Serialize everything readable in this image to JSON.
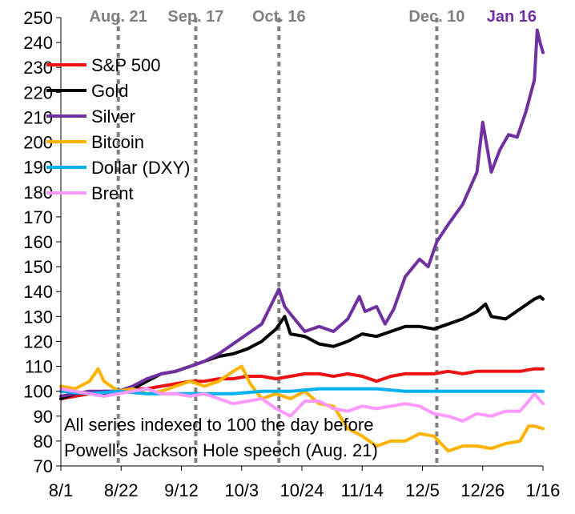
{
  "chart_data": {
    "type": "line",
    "title": "",
    "xlabel": "",
    "ylabel": "",
    "ylim": [
      70,
      250
    ],
    "xlim": [
      "8/1",
      "1/16"
    ],
    "y_ticks": [
      70,
      80,
      90,
      100,
      110,
      120,
      130,
      140,
      150,
      160,
      170,
      180,
      190,
      200,
      210,
      220,
      230,
      240,
      250
    ],
    "x_ticks": [
      {
        "label": "8/1",
        "day": 0
      },
      {
        "label": "8/22",
        "day": 21
      },
      {
        "label": "9/12",
        "day": 42
      },
      {
        "label": "10/3",
        "day": 63
      },
      {
        "label": "10/24",
        "day": 84
      },
      {
        "label": "11/14",
        "day": 105
      },
      {
        "label": "12/5",
        "day": 126
      },
      {
        "label": "12/26",
        "day": 147
      },
      {
        "label": "1/16",
        "day": 168
      }
    ],
    "grid": false,
    "legend_position": "top-left",
    "events": [
      {
        "label": "Aug. 21",
        "day": 20,
        "color": "#808080"
      },
      {
        "label": "Sep. 17",
        "day": 47,
        "color": "#808080"
      },
      {
        "label": "Oct. 16",
        "day": 76,
        "color": "#808080"
      },
      {
        "label": "Dec. 10",
        "day": 131,
        "color": "#808080"
      },
      {
        "label": "Jan 16",
        "day": 168,
        "color": "#7030a0"
      }
    ],
    "annotation_lines": [
      "All series indexed to 100 the day before",
      "Powell's Jackson Hole speech (Aug. 21)"
    ],
    "series": [
      {
        "name": "S&P 500",
        "color": "#ee1111",
        "points": [
          [
            0,
            97
          ],
          [
            5,
            98
          ],
          [
            10,
            99
          ],
          [
            15,
            100
          ],
          [
            20,
            100
          ],
          [
            25,
            101
          ],
          [
            30,
            101
          ],
          [
            35,
            102
          ],
          [
            40,
            103
          ],
          [
            45,
            104
          ],
          [
            50,
            104
          ],
          [
            55,
            105
          ],
          [
            60,
            105
          ],
          [
            65,
            106
          ],
          [
            70,
            106
          ],
          [
            75,
            105
          ],
          [
            80,
            106
          ],
          [
            85,
            107
          ],
          [
            90,
            107
          ],
          [
            95,
            106
          ],
          [
            100,
            107
          ],
          [
            105,
            106
          ],
          [
            110,
            104
          ],
          [
            115,
            106
          ],
          [
            120,
            107
          ],
          [
            125,
            107
          ],
          [
            130,
            107
          ],
          [
            135,
            108
          ],
          [
            140,
            107
          ],
          [
            145,
            108
          ],
          [
            150,
            108
          ],
          [
            155,
            108
          ],
          [
            160,
            108
          ],
          [
            165,
            109
          ],
          [
            168,
            109
          ]
        ]
      },
      {
        "name": "Gold",
        "color": "#000000",
        "points": [
          [
            0,
            97
          ],
          [
            5,
            99
          ],
          [
            10,
            100
          ],
          [
            15,
            99
          ],
          [
            20,
            99
          ],
          [
            25,
            101
          ],
          [
            30,
            104
          ],
          [
            35,
            107
          ],
          [
            40,
            108
          ],
          [
            45,
            110
          ],
          [
            50,
            112
          ],
          [
            55,
            114
          ],
          [
            60,
            115
          ],
          [
            65,
            117
          ],
          [
            70,
            120
          ],
          [
            75,
            125
          ],
          [
            78,
            130
          ],
          [
            80,
            123
          ],
          [
            85,
            122
          ],
          [
            90,
            119
          ],
          [
            95,
            118
          ],
          [
            100,
            120
          ],
          [
            105,
            123
          ],
          [
            110,
            122
          ],
          [
            115,
            124
          ],
          [
            120,
            126
          ],
          [
            125,
            126
          ],
          [
            130,
            125
          ],
          [
            135,
            127
          ],
          [
            140,
            129
          ],
          [
            145,
            132
          ],
          [
            148,
            135
          ],
          [
            150,
            130
          ],
          [
            155,
            129
          ],
          [
            160,
            133
          ],
          [
            165,
            137
          ],
          [
            167,
            138
          ],
          [
            168,
            137
          ]
        ]
      },
      {
        "name": "Silver",
        "color": "#7030a0",
        "points": [
          [
            0,
            98
          ],
          [
            5,
            99
          ],
          [
            10,
            100
          ],
          [
            15,
            100
          ],
          [
            20,
            100
          ],
          [
            25,
            102
          ],
          [
            30,
            105
          ],
          [
            35,
            107
          ],
          [
            40,
            108
          ],
          [
            45,
            110
          ],
          [
            50,
            112
          ],
          [
            55,
            115
          ],
          [
            60,
            119
          ],
          [
            65,
            123
          ],
          [
            70,
            127
          ],
          [
            73,
            134
          ],
          [
            76,
            141
          ],
          [
            78,
            134
          ],
          [
            80,
            131
          ],
          [
            85,
            124
          ],
          [
            90,
            126
          ],
          [
            95,
            124
          ],
          [
            100,
            129
          ],
          [
            104,
            138
          ],
          [
            106,
            132
          ],
          [
            110,
            134
          ],
          [
            113,
            127
          ],
          [
            116,
            133
          ],
          [
            120,
            146
          ],
          [
            125,
            153
          ],
          [
            128,
            150
          ],
          [
            131,
            160
          ],
          [
            135,
            167
          ],
          [
            140,
            175
          ],
          [
            145,
            188
          ],
          [
            147,
            208
          ],
          [
            150,
            188
          ],
          [
            153,
            197
          ],
          [
            156,
            203
          ],
          [
            159,
            202
          ],
          [
            162,
            212
          ],
          [
            165,
            225
          ],
          [
            166,
            245
          ],
          [
            167,
            240
          ],
          [
            168,
            236
          ]
        ]
      },
      {
        "name": "Bitcoin",
        "color": "#ffb300",
        "points": [
          [
            0,
            102
          ],
          [
            5,
            101
          ],
          [
            10,
            104
          ],
          [
            13,
            109
          ],
          [
            15,
            104
          ],
          [
            20,
            100
          ],
          [
            25,
            101
          ],
          [
            30,
            99
          ],
          [
            35,
            100
          ],
          [
            40,
            102
          ],
          [
            45,
            104
          ],
          [
            50,
            102
          ],
          [
            55,
            104
          ],
          [
            60,
            108
          ],
          [
            63,
            110
          ],
          [
            66,
            103
          ],
          [
            70,
            97
          ],
          [
            75,
            99
          ],
          [
            80,
            97
          ],
          [
            85,
            100
          ],
          [
            90,
            95
          ],
          [
            95,
            94
          ],
          [
            100,
            85
          ],
          [
            105,
            82
          ],
          [
            110,
            78
          ],
          [
            115,
            80
          ],
          [
            120,
            80
          ],
          [
            125,
            83
          ],
          [
            130,
            82
          ],
          [
            135,
            76
          ],
          [
            140,
            78
          ],
          [
            145,
            78
          ],
          [
            150,
            77
          ],
          [
            155,
            79
          ],
          [
            160,
            80
          ],
          [
            163,
            86
          ],
          [
            165,
            86
          ],
          [
            168,
            85
          ]
        ]
      },
      {
        "name": "Dollar (DXY)",
        "color": "#00b0f0",
        "points": [
          [
            0,
            100
          ],
          [
            10,
            99
          ],
          [
            20,
            100
          ],
          [
            30,
            99
          ],
          [
            40,
            99
          ],
          [
            50,
            99
          ],
          [
            60,
            99
          ],
          [
            70,
            100
          ],
          [
            80,
            100
          ],
          [
            90,
            101
          ],
          [
            100,
            101
          ],
          [
            110,
            101
          ],
          [
            120,
            100
          ],
          [
            130,
            100
          ],
          [
            140,
            100
          ],
          [
            150,
            100
          ],
          [
            160,
            100
          ],
          [
            168,
            100
          ]
        ]
      },
      {
        "name": "Brent",
        "color": "#ff99ff",
        "points": [
          [
            0,
            101
          ],
          [
            5,
            100
          ],
          [
            10,
            99
          ],
          [
            15,
            98
          ],
          [
            20,
            99
          ],
          [
            25,
            100
          ],
          [
            30,
            101
          ],
          [
            35,
            99
          ],
          [
            40,
            99
          ],
          [
            45,
            98
          ],
          [
            50,
            99
          ],
          [
            55,
            97
          ],
          [
            60,
            95
          ],
          [
            65,
            96
          ],
          [
            70,
            97
          ],
          [
            75,
            93
          ],
          [
            80,
            90
          ],
          [
            85,
            96
          ],
          [
            90,
            96
          ],
          [
            95,
            93
          ],
          [
            100,
            92
          ],
          [
            105,
            94
          ],
          [
            110,
            93
          ],
          [
            115,
            94
          ],
          [
            120,
            95
          ],
          [
            125,
            94
          ],
          [
            130,
            91
          ],
          [
            135,
            90
          ],
          [
            140,
            88
          ],
          [
            145,
            91
          ],
          [
            150,
            90
          ],
          [
            155,
            92
          ],
          [
            160,
            92
          ],
          [
            163,
            96
          ],
          [
            165,
            99
          ],
          [
            168,
            95
          ]
        ]
      }
    ]
  }
}
